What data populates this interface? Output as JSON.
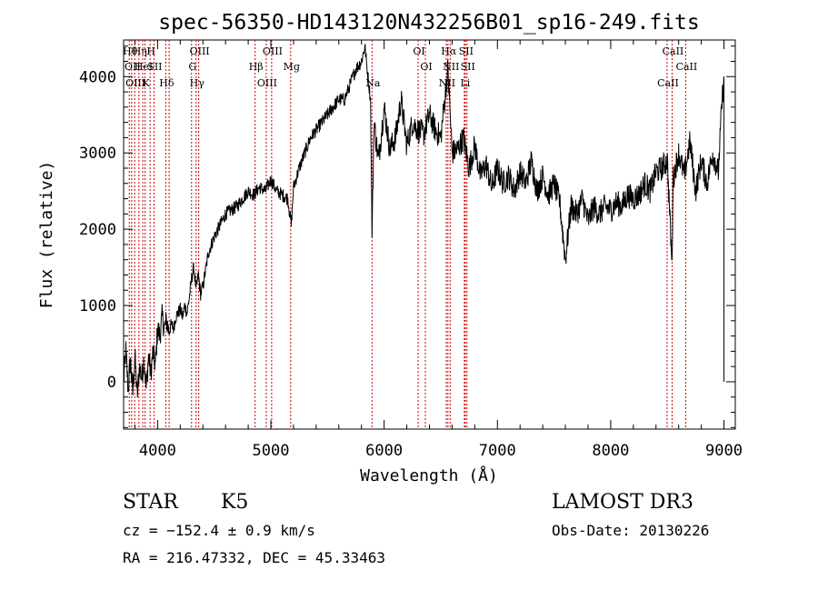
{
  "chart_data": {
    "type": "line",
    "title": "spec-56350-HD143120N432256B01_sp16-249.fits",
    "xlabel": "Wavelength (Å)",
    "ylabel": "Flux (relative)",
    "xlim": [
      3700,
      9100
    ],
    "ylim": [
      -620,
      4480
    ],
    "x_ticks": [
      4000,
      5000,
      6000,
      7000,
      8000,
      9000
    ],
    "y_ticks": [
      0,
      1000,
      2000,
      3000,
      4000
    ],
    "grid": false,
    "series": [
      {
        "x": [
          3700,
          3720,
          3740,
          3760,
          3780,
          3800,
          3820,
          3840,
          3860,
          3880,
          3900,
          3920,
          3940,
          3960,
          3980,
          4000,
          4020,
          4040,
          4060,
          4080,
          4100,
          4120,
          4140,
          4160,
          4180,
          4200,
          4220,
          4240,
          4260,
          4280,
          4300,
          4320,
          4340,
          4360,
          4380,
          4400,
          4450,
          4500,
          4550,
          4600,
          4650,
          4700,
          4750,
          4800,
          4850,
          4900,
          4950,
          5000,
          5050,
          5100,
          5150,
          5180,
          5200,
          5250,
          5300,
          5350,
          5400,
          5450,
          5500,
          5550,
          5600,
          5650,
          5700,
          5750,
          5800,
          5830,
          5850,
          5880,
          5893,
          5910,
          5950,
          6000,
          6050,
          6100,
          6150,
          6200,
          6250,
          6300,
          6350,
          6400,
          6450,
          6500,
          6563,
          6600,
          6650,
          6700,
          6750,
          6800,
          6850,
          6900,
          6950,
          7000,
          7050,
          7100,
          7150,
          7200,
          7250,
          7300,
          7350,
          7400,
          7450,
          7500,
          7550,
          7600,
          7650,
          7700,
          7750,
          7800,
          7850,
          7900,
          7950,
          8000,
          8050,
          8100,
          8150,
          8200,
          8250,
          8300,
          8350,
          8400,
          8450,
          8500,
          8542,
          8550,
          8600,
          8650,
          8700,
          8750,
          8800,
          8850,
          8900,
          8950,
          8980,
          9000
        ],
        "y": [
          0,
          400,
          -100,
          300,
          -150,
          350,
          -200,
          200,
          50,
          300,
          -100,
          350,
          100,
          400,
          200,
          700,
          600,
          850,
          700,
          800,
          650,
          750,
          700,
          850,
          900,
          950,
          850,
          1000,
          900,
          1100,
          1350,
          1500,
          1200,
          1400,
          1150,
          1250,
          1700,
          1900,
          2050,
          2200,
          2250,
          2300,
          2400,
          2500,
          2450,
          2550,
          2500,
          2650,
          2500,
          2450,
          2400,
          2050,
          2550,
          2800,
          3000,
          3200,
          3300,
          3400,
          3500,
          3600,
          3700,
          3700,
          3900,
          4100,
          4200,
          4400,
          4100,
          3700,
          1950,
          3400,
          2900,
          3600,
          3050,
          3200,
          3700,
          3100,
          3400,
          3300,
          3250,
          3500,
          3300,
          3200,
          4100,
          3000,
          3050,
          3200,
          2800,
          3100,
          2700,
          2850,
          2550,
          2800,
          2600,
          2700,
          2500,
          2750,
          2600,
          2900,
          2500,
          2700,
          2450,
          2600,
          2350,
          1600,
          2300,
          2200,
          2400,
          2100,
          2300,
          2200,
          2300,
          2250,
          2350,
          2300,
          2450,
          2400,
          2450,
          2600,
          2500,
          2750,
          2800,
          2900,
          1500,
          2650,
          3000,
          2700,
          3150,
          2500,
          2900,
          2600,
          3000,
          2750,
          3600,
          4000
        ],
        "color": "#000000"
      }
    ],
    "line_markers": [
      {
        "wavelength": 3750,
        "label": "Hθ"
      },
      {
        "wavelength": 3771,
        "label": "OII"
      },
      {
        "wavelength": 3798,
        "label": "OIII"
      },
      {
        "wavelength": 3835,
        "label": "Hη"
      },
      {
        "wavelength": 3869,
        "label": "HeI"
      },
      {
        "wavelength": 3889,
        "label": "K"
      },
      {
        "wavelength": 3934,
        "label": "H"
      },
      {
        "wavelength": 3968,
        "label": "SII"
      },
      {
        "wavelength": 4072,
        "label": "Hδ"
      },
      {
        "wavelength": 4102,
        "label": ""
      },
      {
        "wavelength": 4300,
        "label": "G"
      },
      {
        "wavelength": 4340,
        "label": "Hγ"
      },
      {
        "wavelength": 4363,
        "label": "OIII"
      },
      {
        "wavelength": 4861,
        "label": "Hβ"
      },
      {
        "wavelength": 4959,
        "label": "OIII"
      },
      {
        "wavelength": 5007,
        "label": "OIII"
      },
      {
        "wavelength": 5175,
        "label": "Mg"
      },
      {
        "wavelength": 5893,
        "label": "Na"
      },
      {
        "wavelength": 6300,
        "label": "OI"
      },
      {
        "wavelength": 6364,
        "label": "OI"
      },
      {
        "wavelength": 6548,
        "label": "NII"
      },
      {
        "wavelength": 6563,
        "label": "Hα"
      },
      {
        "wavelength": 6583,
        "label": "NII"
      },
      {
        "wavelength": 6708,
        "label": "Li"
      },
      {
        "wavelength": 6716,
        "label": "SII"
      },
      {
        "wavelength": 6731,
        "label": "SII"
      },
      {
        "wavelength": 8498,
        "label": "CaII"
      },
      {
        "wavelength": 8542,
        "label": "CaII"
      },
      {
        "wavelength": 8662,
        "label": "CaII"
      }
    ],
    "marker_color": "#cc0000"
  },
  "footer": {
    "object_type": "STAR",
    "subclass": "K5",
    "survey": "LAMOST DR3",
    "cz": "cz = −152.4 ± 0.9 km/s",
    "obs_date": "Obs-Date: 20130226",
    "coords": "RA = 216.47332, DEC =  45.33463"
  }
}
